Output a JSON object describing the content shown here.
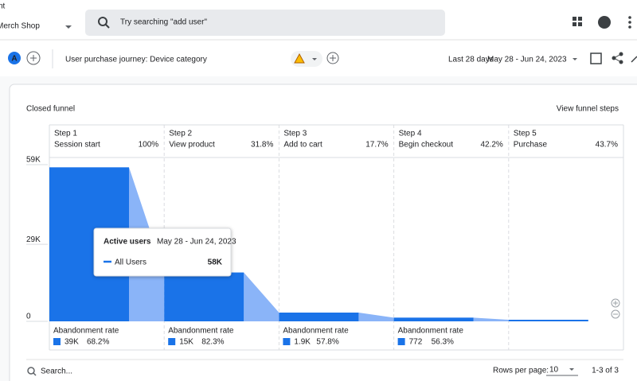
{
  "top_bar": {
    "account_prefix": "nt",
    "product": "Merch Shop",
    "search_placeholder": "Try searching \"add user\""
  },
  "toolbar": {
    "avatar": "A",
    "title": "User purchase journey: Device category",
    "date_caption": "Last 28 days",
    "date_range": "May 28 - Jun 24, 2023"
  },
  "card": {
    "title": "Closed funnel",
    "action": "View funnel steps"
  },
  "chart_data": {
    "type": "funnel",
    "step_labels": [
      "Step 1",
      "Step 2",
      "Step 3",
      "Step 4",
      "Step 5"
    ],
    "categories": [
      "Session start",
      "View product",
      "Add to cart",
      "Begin checkout",
      "Purchase"
    ],
    "completion_rates": {
      "values": [
        100,
        31.8,
        17.7,
        42.2,
        43.7
      ],
      "value_labels": [
        "100%",
        "31.8%",
        "17.7%",
        "42.2%",
        "43.7%"
      ]
    },
    "series": [
      {
        "name": "All Users",
        "color": "#1a73e8",
        "values": [
          58000,
          18400,
          3300,
          1400,
          600
        ]
      }
    ],
    "ylim": [
      0,
      59000
    ],
    "yticks": [
      0,
      {
        "value": 29000,
        "label": "29K"
      },
      {
        "value": 59000,
        "label": "59K"
      }
    ],
    "abandonment": {
      "label": "Abandonment rate",
      "counts": {
        "values": [
          39000,
          15000,
          1900,
          772
        ],
        "value_labels": [
          "39K",
          "15K",
          "1.9K",
          "772"
        ]
      },
      "rates": {
        "values": [
          68.2,
          82.3,
          57.8,
          56.3
        ],
        "value_labels": [
          "68.2%",
          "82.3%",
          "57.8%",
          "56.3%"
        ]
      }
    },
    "tooltip": {
      "title": "Active users",
      "date": "May 28 - Jun 24, 2023",
      "value_label": "58K"
    }
  },
  "footer": {
    "search": "Search...",
    "rows_label": "Rows per page:",
    "rows_per_page": 10,
    "range": "1-3 of 3"
  }
}
